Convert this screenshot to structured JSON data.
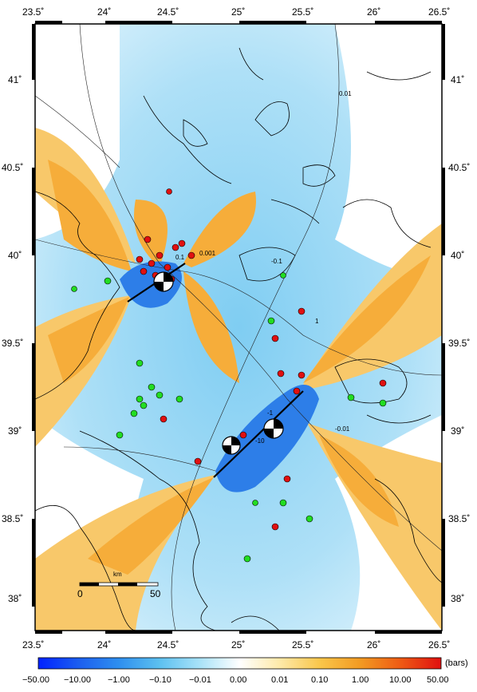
{
  "map": {
    "lon_ticks": [
      "23.5˚",
      "24˚",
      "24.5˚",
      "25˚",
      "25.5˚",
      "26˚",
      "26.5˚"
    ],
    "lat_ticks": [
      "41˚",
      "40.5˚",
      "40˚",
      "39.5˚",
      "39˚",
      "38.5˚",
      "38˚"
    ],
    "contour_labels": [
      "0.01",
      "-0.01",
      "0.1",
      "-0.1",
      "0.001",
      "-1",
      "-10",
      "1"
    ],
    "scale_bar": {
      "title": "km",
      "start": "0",
      "end": "50"
    },
    "colorbar": {
      "unit": "(bars)",
      "ticks": [
        "−50.00",
        "−10.00",
        "−1.00",
        "−0.10",
        "−0.01",
        "0.00",
        "0.01",
        "0.10",
        "1.00",
        "10.00",
        "50.00"
      ],
      "colors": [
        "#0022ff",
        "#1c5ef0",
        "#2e8ff0",
        "#5cc0f0",
        "#a8e2f8",
        "#ffffff",
        "#fde9a8",
        "#f9c64a",
        "#f29a22",
        "#ee5a14",
        "#e01010"
      ]
    },
    "colors": {
      "positive_stress": "#f6b13a",
      "negative_stress": "#3aa8ea",
      "strong_negative": "#1560e0",
      "aftershock_red": "#e01010",
      "aftershock_green": "#22dd22",
      "fault_trace": "#000000"
    },
    "focal_mechanisms": [
      {
        "name": "northern-event",
        "lon": 24.4,
        "lat": 39.85
      },
      {
        "name": "central-event",
        "lon": 24.95,
        "lat": 38.9
      },
      {
        "name": "eastern-event",
        "lon": 25.2,
        "lat": 39.0
      }
    ]
  }
}
